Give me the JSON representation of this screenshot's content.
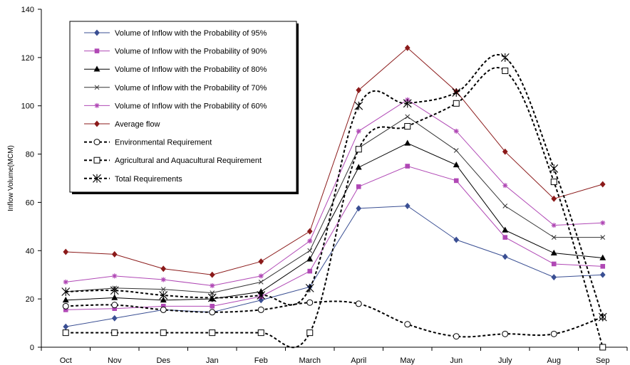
{
  "chart_data": {
    "type": "line",
    "xlabel": "",
    "ylabel": "Inflow Volume(MCM)",
    "ylim": [
      0,
      140
    ],
    "yticks": [
      "0",
      "20",
      "40",
      "60",
      "80",
      "100",
      "120",
      "140"
    ],
    "categories": [
      "Oct",
      "Nov",
      "Des",
      "Jan",
      "Feb",
      "March",
      "April",
      "May",
      "Jun",
      "July",
      "Aug",
      "Sep"
    ],
    "grid": false,
    "legend_position": "top-left",
    "series": [
      {
        "name": "Volume of Inflow with the Probability of 95%",
        "color": "#3a4f93",
        "marker": "diamond",
        "dash": "solid",
        "smooth": false,
        "values": [
          8.5,
          12,
          15.5,
          14.5,
          19.5,
          25,
          57.5,
          58.5,
          44.5,
          37.5,
          29,
          30
        ]
      },
      {
        "name": "Volume of Inflow with the Probability of 90%",
        "color": "#b048b5",
        "marker": "square",
        "dash": "solid",
        "smooth": false,
        "values": [
          15.5,
          16,
          17,
          17,
          21,
          31.5,
          66.5,
          75,
          69,
          45.5,
          34.5,
          33.5
        ]
      },
      {
        "name": "Volume of Inflow with the Probability of 80%",
        "color": "#000000",
        "marker": "triangle",
        "dash": "solid",
        "smooth": false,
        "values": [
          19.5,
          20.5,
          19.5,
          20,
          23,
          36.5,
          74.5,
          84.5,
          75.5,
          48.5,
          39,
          37
        ]
      },
      {
        "name": "Volume of Inflow with the Probability of 70%",
        "color": "#333333",
        "marker": "x",
        "dash": "solid",
        "smooth": false,
        "values": [
          23,
          24.5,
          24,
          22.5,
          27,
          40,
          82.5,
          95.5,
          81.5,
          58.5,
          45.5,
          45.5
        ]
      },
      {
        "name": "Volume of Inflow with the Probability of 60%",
        "color": "#b048b5",
        "marker": "star",
        "dash": "solid",
        "smooth": false,
        "values": [
          27,
          29.5,
          28,
          25.5,
          29.5,
          44,
          89.5,
          102.5,
          89.5,
          67,
          50.5,
          51.5
        ]
      },
      {
        "name": "Average flow",
        "color": "#8b1a1a",
        "marker": "diamond",
        "dash": "solid",
        "smooth": false,
        "values": [
          39.5,
          38.5,
          32.5,
          30,
          35.5,
          48,
          106.5,
          124,
          106,
          81,
          61.5,
          67.5
        ]
      },
      {
        "name": "Environmental Requirement",
        "color": "#000000",
        "marker": "circle",
        "dash": "dotted",
        "smooth": true,
        "values": [
          17,
          17.5,
          15.5,
          14.5,
          15.5,
          18.5,
          18,
          9.5,
          4.5,
          5.5,
          5.5,
          12.5
        ]
      },
      {
        "name": "Agricultural and Aquacultural Requirement",
        "color": "#000000",
        "marker": "square-open",
        "dash": "dotted",
        "smooth": true,
        "values": [
          6,
          6,
          6,
          6,
          6,
          6,
          82,
          91.5,
          101,
          114.5,
          68.5,
          0
        ]
      },
      {
        "name": "Total Requirements",
        "color": "#000000",
        "marker": "asterisk",
        "dash": "dotted",
        "smooth": true,
        "values": [
          23,
          23.5,
          21.5,
          20.5,
          21.5,
          24.5,
          100,
          101,
          105.5,
          120,
          74,
          12.5
        ]
      }
    ]
  }
}
